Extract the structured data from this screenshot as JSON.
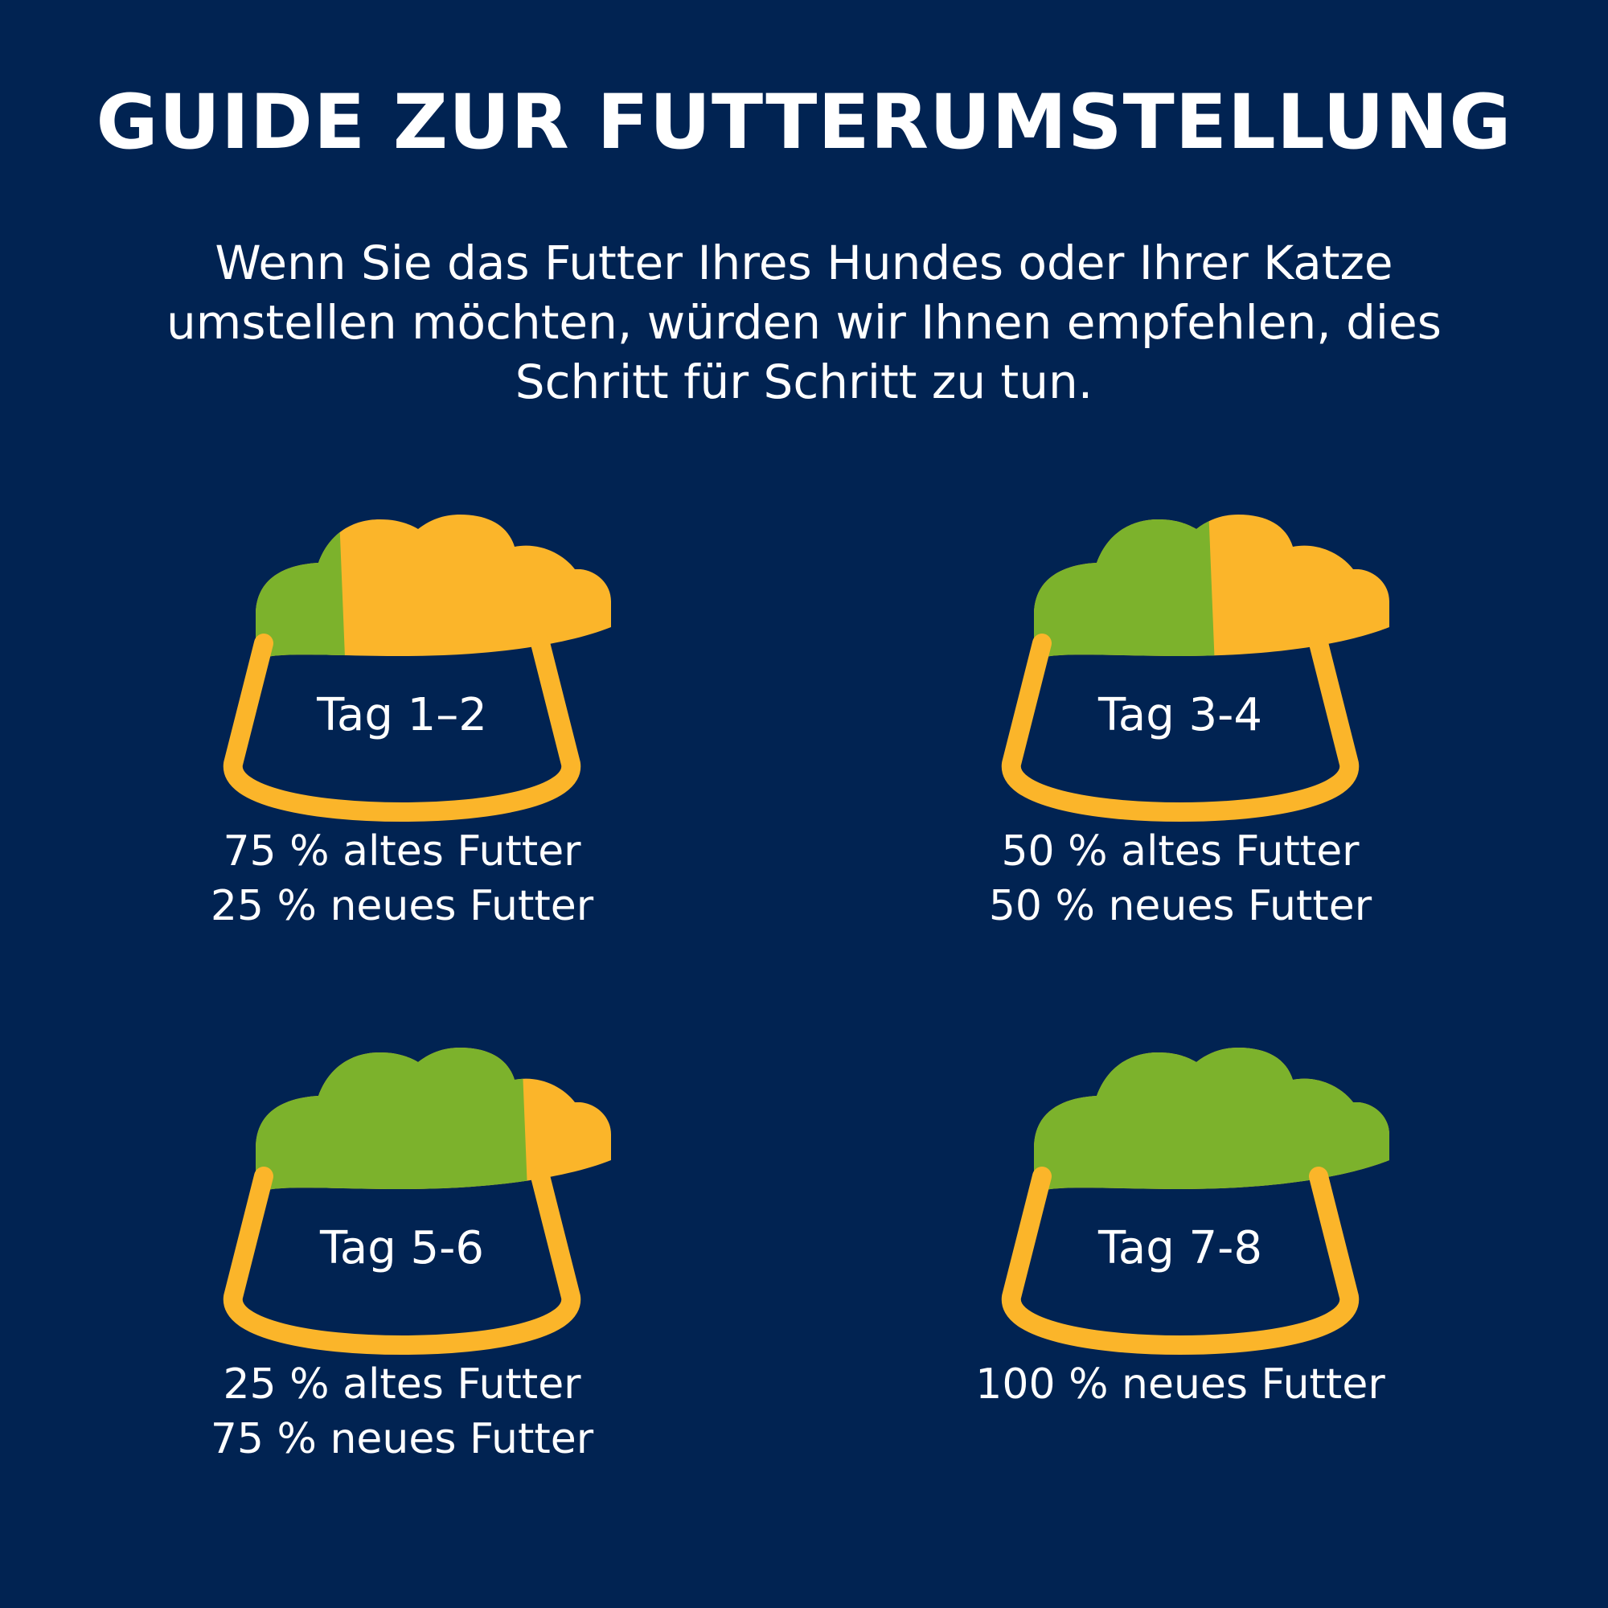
{
  "title": "GUIDE ZUR FUTTERUMSTELLUNG",
  "intro": {
    "lines": [
      "Wenn Sie das Futter Ihres Hundes oder Ihrer Katze",
      "umstellen möchten, würden wir Ihnen empfehlen, dies",
      "Schritt für Schritt zu tun."
    ]
  },
  "colors": {
    "background": "#012352",
    "old_food": "#FBB52A",
    "new_food": "#7CB22C",
    "bowl_outline": "#FBB52A",
    "text": "#FFFFFF"
  },
  "steps": [
    {
      "day": "Tag 1–2",
      "new_food_share": 0.25,
      "lines": [
        "75 % altes Futter",
        "25 % neues Futter"
      ]
    },
    {
      "day": "Tag 3-4",
      "new_food_share": 0.5,
      "lines": [
        "50 % altes Futter",
        "50 % neues Futter"
      ]
    },
    {
      "day": "Tag 5-6",
      "new_food_share": 0.75,
      "lines": [
        "25 % altes Futter",
        "75 % neues Futter"
      ]
    },
    {
      "day": "Tag 7-8",
      "new_food_share": 1.0,
      "lines": [
        "100 % neues Futter"
      ]
    }
  ]
}
